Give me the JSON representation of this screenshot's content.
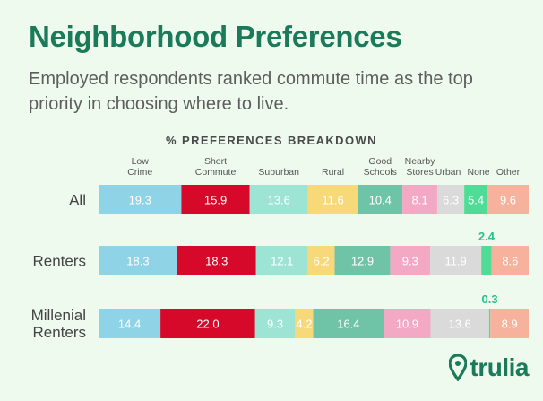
{
  "header": {
    "title": "Neighborhood Preferences",
    "subtitle": "Employed respondents ranked commute time as the top priority in choosing where to live."
  },
  "colors": {
    "title": "#1a7a5a",
    "subtitle": "#5d5d5d",
    "background": "#eefaee"
  },
  "brand": {
    "name": "trulia",
    "logo_icon": "location-pin-icon"
  },
  "chart_data": {
    "type": "bar",
    "orientation": "horizontal",
    "stacked": true,
    "title": "% PREFERENCES BREAKDOWN",
    "categories": [
      "All",
      "Renters",
      "Millenial Renters"
    ],
    "category_labels": [
      [
        "All"
      ],
      [
        "Renters"
      ],
      [
        "Millenial",
        "Renters"
      ]
    ],
    "series": [
      {
        "name": "Low Crime",
        "label_lines": [
          "Low",
          "Crime"
        ],
        "color": "#8fd3e6",
        "values": [
          19.3,
          18.3,
          14.4
        ]
      },
      {
        "name": "Short Commute",
        "label_lines": [
          "Short",
          "Commute"
        ],
        "color": "#d6092a",
        "values": [
          15.9,
          18.3,
          22.0
        ]
      },
      {
        "name": "Suburban",
        "label_lines": [
          "Suburban"
        ],
        "color": "#9de4d5",
        "values": [
          13.6,
          12.1,
          9.3
        ]
      },
      {
        "name": "Rural",
        "label_lines": [
          "Rural"
        ],
        "color": "#f7d97a",
        "values": [
          11.6,
          6.2,
          4.2
        ]
      },
      {
        "name": "Good Schools",
        "label_lines": [
          "Good",
          "Schools"
        ],
        "color": "#6fc3a6",
        "values": [
          10.4,
          12.9,
          16.4
        ]
      },
      {
        "name": "Nearby Stores",
        "label_lines": [
          "Nearby",
          "Stores"
        ],
        "color": "#f3a9c3",
        "values": [
          8.1,
          9.3,
          10.9
        ]
      },
      {
        "name": "Urban",
        "label_lines": [
          "Urban"
        ],
        "color": "#d9dad9",
        "values": [
          6.3,
          11.9,
          13.6
        ]
      },
      {
        "name": "None",
        "label_lines": [
          "None"
        ],
        "color": "#4fdc97",
        "values": [
          5.4,
          2.4,
          0.3
        ]
      },
      {
        "name": "Other",
        "label_lines": [
          "Other"
        ],
        "color": "#f6b29c",
        "values": [
          9.6,
          8.6,
          8.9
        ]
      }
    ],
    "value_labels": [
      [
        "19.3",
        "15.9",
        "13.6",
        "11.6",
        "10.4",
        "8.1",
        "6.3",
        "5.4",
        "9.6"
      ],
      [
        "18.3",
        "18.3",
        "12.1",
        "6.2",
        "12.9",
        "9.3",
        "11.9",
        "2.4",
        "8.6"
      ],
      [
        "14.4",
        "22.0",
        "9.3",
        "4.2",
        "16.4",
        "10.9",
        "13.6",
        "0.3",
        "8.9"
      ]
    ],
    "callout_color": "#2bbf8a",
    "xlim": [
      0,
      100
    ],
    "legend": "top",
    "grid": false
  }
}
